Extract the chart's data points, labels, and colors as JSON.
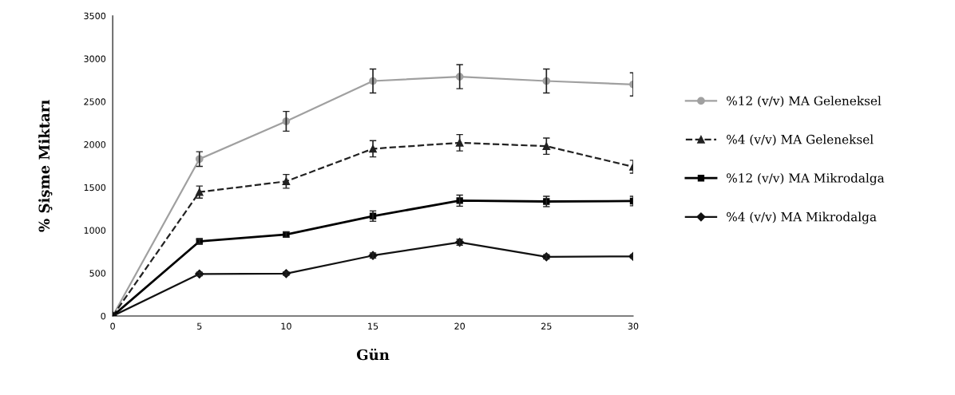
{
  "chart_data": {
    "type": "line",
    "xlabel": "Gün",
    "ylabel": "% Şişme Miktarı",
    "x": [
      0,
      5,
      10,
      15,
      20,
      25,
      30
    ],
    "xlim": [
      0,
      30
    ],
    "xticks": [
      0,
      5,
      10,
      15,
      20,
      25,
      30
    ],
    "ylim": [
      0,
      3500
    ],
    "yticks": [
      0,
      500,
      1000,
      1500,
      2000,
      2500,
      3000,
      3500
    ],
    "grid": false,
    "legend": "right",
    "series": [
      {
        "name": "%12 (v/v) MA Geleneksel",
        "color": "#a0a0a0",
        "marker": "circle",
        "line_style": "solid",
        "values": [
          0,
          1830,
          2270,
          2740,
          2790,
          2740,
          2700
        ],
        "errors": [
          null,
          85,
          115,
          140,
          140,
          140,
          135
        ]
      },
      {
        "name": "%4 (v/v) MA Geleneksel",
        "color": "#222222",
        "marker": "triangle",
        "line_style": "dashed",
        "values": [
          0,
          1445,
          1570,
          1950,
          2020,
          1980,
          1740
        ],
        "errors": [
          null,
          70,
          80,
          95,
          95,
          95,
          75
        ]
      },
      {
        "name": "%12 (v/v) MA Mikrodalga",
        "color": "#000000",
        "marker": "square",
        "line_style": "solid",
        "values": [
          0,
          870,
          950,
          1165,
          1345,
          1335,
          1340
        ],
        "errors": [
          null,
          25,
          30,
          60,
          65,
          60,
          55
        ]
      },
      {
        "name": "%4 (v/v) MA Mikrodalga",
        "color": "#111111",
        "marker": "diamond",
        "line_style": "solid",
        "values": [
          0,
          490,
          495,
          705,
          860,
          690,
          695
        ],
        "errors": [
          null,
          20,
          20,
          30,
          35,
          25,
          20
        ]
      }
    ]
  }
}
